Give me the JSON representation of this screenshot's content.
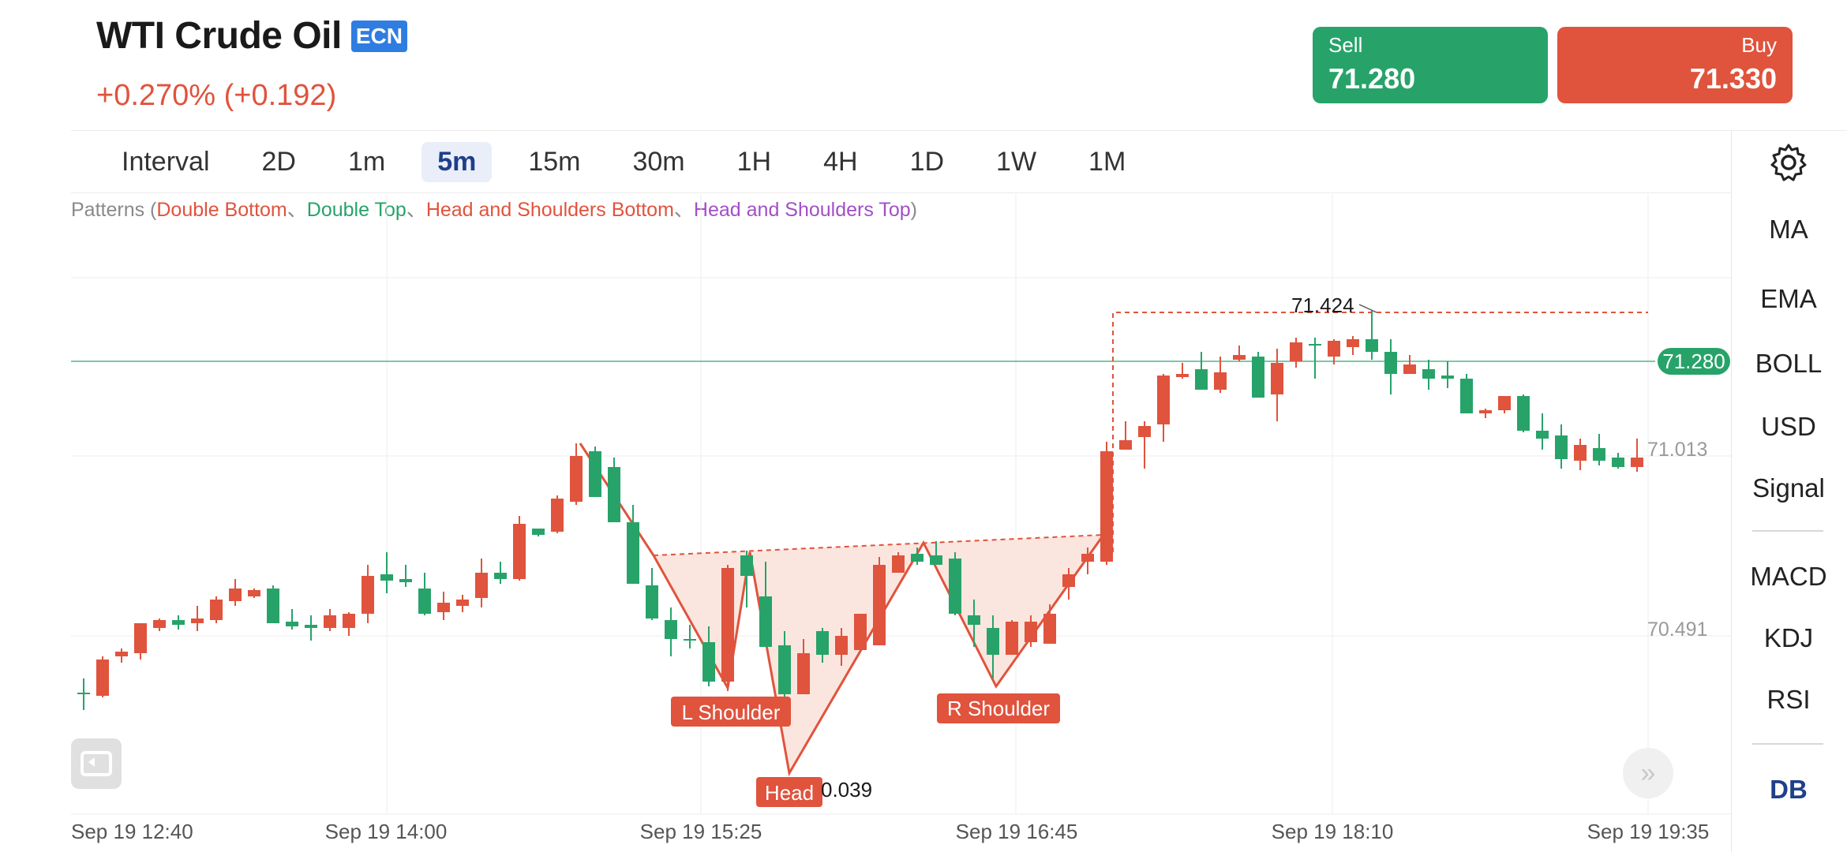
{
  "header": {
    "title": "WTI Crude Oil",
    "badge": "ECN",
    "change": "+0.270% (+0.192)",
    "sell_label": "Sell",
    "sell_price": "71.280",
    "buy_label": "Buy",
    "buy_price": "71.330"
  },
  "intervals": {
    "label": "Interval",
    "items": [
      "2D",
      "1m",
      "5m",
      "15m",
      "30m",
      "1H",
      "4H",
      "1D",
      "1W",
      "1M"
    ],
    "active": "5m"
  },
  "sidebar": {
    "settings_icon": "gear-icon",
    "items": [
      "MA",
      "EMA",
      "BOLL",
      "USD",
      "Signal",
      "MACD",
      "KDJ",
      "RSI",
      "DB"
    ]
  },
  "patterns": {
    "prefix": "Patterns (",
    "double_bottom": "Double Bottom",
    "sep1": "、",
    "double_top": "Double Top",
    "sep2": "、",
    "hs_bottom": "Head and Shoulders Bottom",
    "sep3": "、",
    "hs_top": "Head and Shoulders Top",
    "suffix": ")"
  },
  "chart_data": {
    "type": "candlestick",
    "x_labels": [
      "Sep 19 12:40",
      "Sep 19 14:00",
      "Sep 19 15:25",
      "Sep 19 16:45",
      "Sep 19 18:10",
      "Sep 19 19:35"
    ],
    "y_labels": [
      "71.013",
      "70.491"
    ],
    "current_price": "71.280",
    "max_label": "71.424",
    "min_label": "0.039",
    "annotations": [
      "L Shoulder",
      "Head",
      "R Shoulder"
    ],
    "colors": {
      "up": "#27a36a",
      "down": "#e0533d",
      "pattern": "#e0533d"
    }
  }
}
